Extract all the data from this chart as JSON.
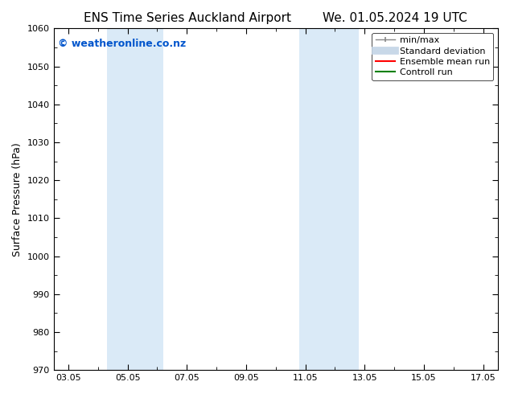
{
  "title_left": "ENS Time Series Auckland Airport",
  "title_right": "We. 01.05.2024 19 UTC",
  "ylabel": "Surface Pressure (hPa)",
  "ylim": [
    970,
    1060
  ],
  "yticks": [
    970,
    980,
    990,
    1000,
    1010,
    1020,
    1030,
    1040,
    1050,
    1060
  ],
  "xticks_labels": [
    "03.05",
    "05.05",
    "07.05",
    "09.05",
    "11.05",
    "13.05",
    "15.05",
    "17.05"
  ],
  "xticks_values": [
    0,
    2,
    4,
    6,
    8,
    10,
    12,
    14
  ],
  "xlim": [
    -0.5,
    14.5
  ],
  "shaded_bands": [
    {
      "xmin": 1.3,
      "xmax": 3.2,
      "color": "#daeaf7"
    },
    {
      "xmin": 7.8,
      "xmax": 9.8,
      "color": "#daeaf7"
    }
  ],
  "watermark_text": "© weatheronline.co.nz",
  "watermark_color": "#0055cc",
  "legend_items": [
    {
      "label": "min/max",
      "color": "#aaaaaa"
    },
    {
      "label": "Standard deviation",
      "color": "#bbccdd"
    },
    {
      "label": "Ensemble mean run",
      "color": "red"
    },
    {
      "label": "Controll run",
      "color": "green"
    }
  ],
  "bg_color": "#ffffff",
  "plot_bg_color": "#ffffff",
  "title_fontsize": 11,
  "label_fontsize": 9,
  "tick_fontsize": 8,
  "watermark_fontsize": 9
}
